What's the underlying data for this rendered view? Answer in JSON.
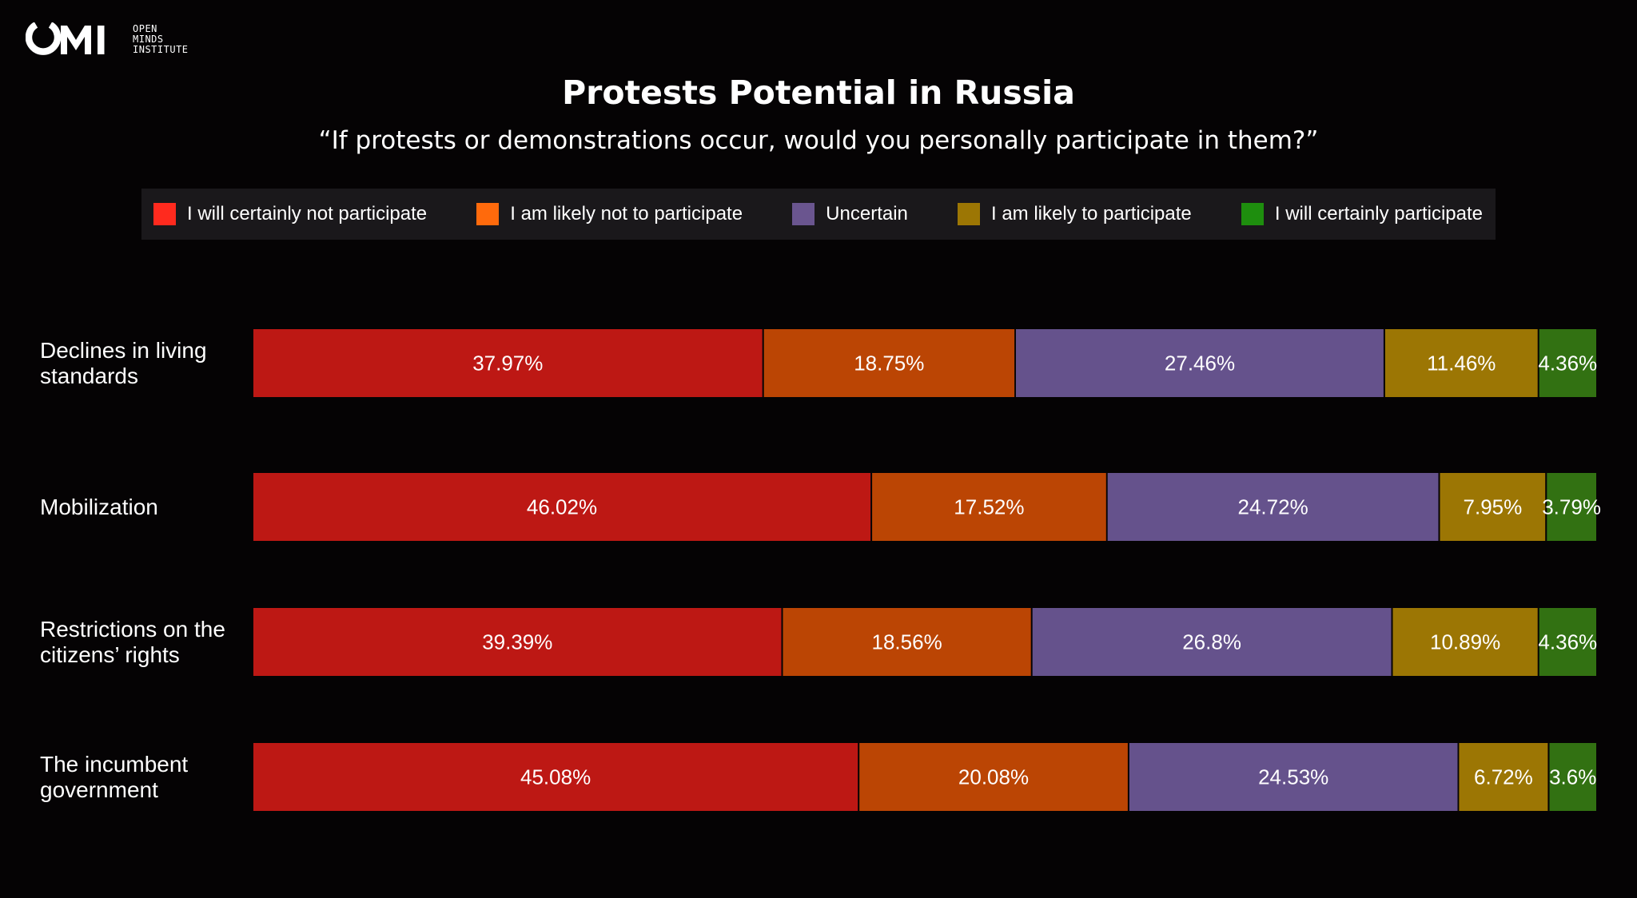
{
  "logo": {
    "mark": "OMI",
    "lines": [
      "OPEN",
      "MINDS",
      "INSTITUTE"
    ]
  },
  "chart_data": {
    "type": "bar",
    "orientation": "horizontal",
    "stacked": true,
    "title": "Protests Potential in Russia",
    "subtitle": "“If protests or demonstrations occur, would you personally participate in them?”",
    "legend_placement": "top",
    "categories": [
      "Declines in living standards",
      "Mobilization",
      "Restrictions on the citizens’ rights",
      "The incumbent government"
    ],
    "category_label_lines": [
      [
        "Declines in living",
        "standards"
      ],
      [
        "Mobilization"
      ],
      [
        "Restrictions on the",
        "citizens’ rights"
      ],
      [
        "The incumbent",
        "government"
      ]
    ],
    "series": [
      {
        "name": "I will certainly not participate",
        "legend_color": "#ff2a1e",
        "bar_color": "#bd1814",
        "values": [
          37.97,
          46.02,
          39.39,
          45.08
        ]
      },
      {
        "name": "I am likely not to participate",
        "legend_color": "#ff6a0c",
        "bar_color": "#bb4504",
        "values": [
          18.75,
          17.52,
          18.56,
          20.08
        ]
      },
      {
        "name": "Uncertain",
        "legend_color": "#6a558f",
        "bar_color": "#65528c",
        "values": [
          27.46,
          24.72,
          26.8,
          24.53
        ]
      },
      {
        "name": "I am likely to participate",
        "legend_color": "#9c7604",
        "bar_color": "#9c7604",
        "values": [
          11.46,
          7.95,
          10.89,
          6.72
        ]
      },
      {
        "name": "I will certainly participate",
        "legend_color": "#1e8e0e",
        "bar_color": "#327112",
        "values": [
          4.36,
          3.79,
          4.36,
          3.6
        ]
      }
    ],
    "value_suffix": "%",
    "xlim": [
      0,
      100
    ],
    "grid": false
  }
}
